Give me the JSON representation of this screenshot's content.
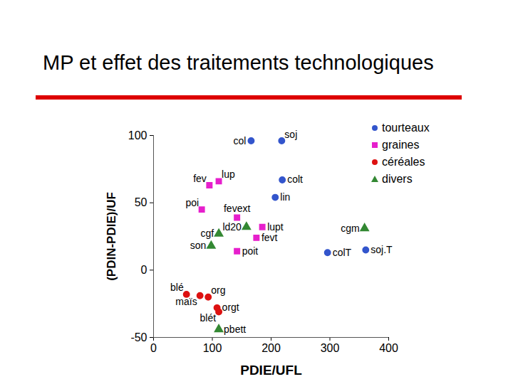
{
  "chart_data": {
    "type": "scatter",
    "title": "MP et effet des traitements technologiques",
    "x_label": "PDIE/UFL",
    "y_label": "(PDIN-PDIE)/UF",
    "xlim": [
      0,
      400
    ],
    "xticks": [
      0,
      100,
      200,
      300,
      400
    ],
    "ylim": [
      -50,
      100
    ],
    "yticks": [
      -50,
      0,
      50,
      100
    ],
    "grid": false,
    "legend": "top-right",
    "series": [
      {
        "name": "tourteaux",
        "color": "#3355cc",
        "marker": "circle",
        "x": [
          166,
          218,
          219,
          207,
          296,
          361
        ],
        "values": [
          96,
          96,
          67,
          54,
          13,
          15
        ],
        "labels": [
          "col",
          "soj",
          "colt",
          "lin",
          "colT",
          "soj.T"
        ]
      },
      {
        "name": "graines",
        "color": "#e61fcc",
        "marker": "square",
        "x": [
          95,
          111,
          82,
          142,
          185,
          175,
          142
        ],
        "values": [
          63,
          66,
          45,
          39,
          32,
          24,
          14
        ],
        "labels": [
          "fev",
          "lup",
          "poi",
          "fevext",
          "lupt",
          "fevt",
          "poit"
        ]
      },
      {
        "name": "céréales",
        "color": "#dd1111",
        "marker": "circle",
        "x": [
          56,
          79,
          93,
          108,
          111
        ],
        "values": [
          -18,
          -19,
          -20,
          -28,
          -31
        ],
        "labels": [
          "blé",
          "maïs",
          "org",
          "orgt",
          "blét"
        ]
      },
      {
        "name": "divers",
        "color": "#338833",
        "marker": "triangle",
        "x": [
          111,
          98,
          158,
          359,
          111
        ],
        "values": [
          27,
          18,
          32,
          31,
          -44
        ],
        "labels": [
          "cgf",
          "son",
          "ld20",
          "cgm",
          "pbett"
        ]
      }
    ]
  }
}
